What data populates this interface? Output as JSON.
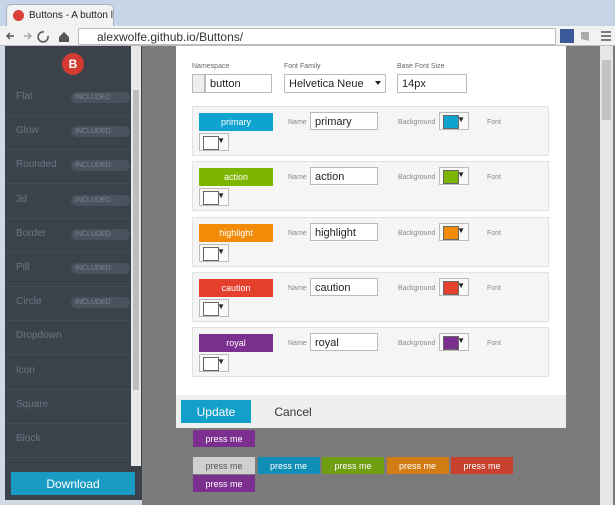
{
  "browser": {
    "tab_title": "Buttons - A button librar",
    "url": "alexwolfe.github.io/Buttons/"
  },
  "sidebar": {
    "logo": "B",
    "items": [
      {
        "label": "Flat",
        "badge": "INCLUDED"
      },
      {
        "label": "Glow",
        "badge": "INCLUDED"
      },
      {
        "label": "Rounded",
        "badge": "INCLUDED"
      },
      {
        "label": "3d",
        "badge": "INCLUDED"
      },
      {
        "label": "Border",
        "badge": "INCLUDED"
      },
      {
        "label": "Pill",
        "badge": "INCLUDED"
      },
      {
        "label": "Circle",
        "badge": "INCLUDED"
      },
      {
        "label": "Dropdown"
      },
      {
        "label": "Icon"
      },
      {
        "label": "Square"
      },
      {
        "label": "Block"
      }
    ],
    "download": "Download"
  },
  "modal": {
    "fields": [
      {
        "label": "Namespace",
        "value": "button"
      },
      {
        "label": "Font Family",
        "value": "Helvetica Neue"
      },
      {
        "label": "Base Font Size",
        "value": "14px"
      }
    ],
    "name_label": "Name",
    "background_label": "Background",
    "font_label": "Font",
    "rows": [
      {
        "button": "primary",
        "name": "primary",
        "color": "#0fa3cf"
      },
      {
        "button": "action",
        "name": "action",
        "color": "#7db600"
      },
      {
        "button": "highlight",
        "name": "highlight",
        "color": "#f18b08"
      },
      {
        "button": "caution",
        "name": "caution",
        "color": "#e4402e"
      },
      {
        "button": "royal",
        "name": "royal",
        "color": "#7b2f8f"
      }
    ],
    "update": "Update",
    "cancel": "Cancel"
  },
  "background": {
    "rows": [
      [
        {
          "label": "press me",
          "color": "#7b2f8f"
        }
      ],
      [
        {
          "label": "press me",
          "color": "#d0d0d0"
        },
        {
          "label": "press me",
          "color": "#0f8fb6"
        },
        {
          "label": "press me",
          "color": "#6f9e12"
        },
        {
          "label": "press me",
          "color": "#d17d13"
        },
        {
          "label": "press me",
          "color": "#c8412f"
        }
      ],
      [
        {
          "label": "press me",
          "color": "#7b2f8f"
        }
      ]
    ]
  }
}
